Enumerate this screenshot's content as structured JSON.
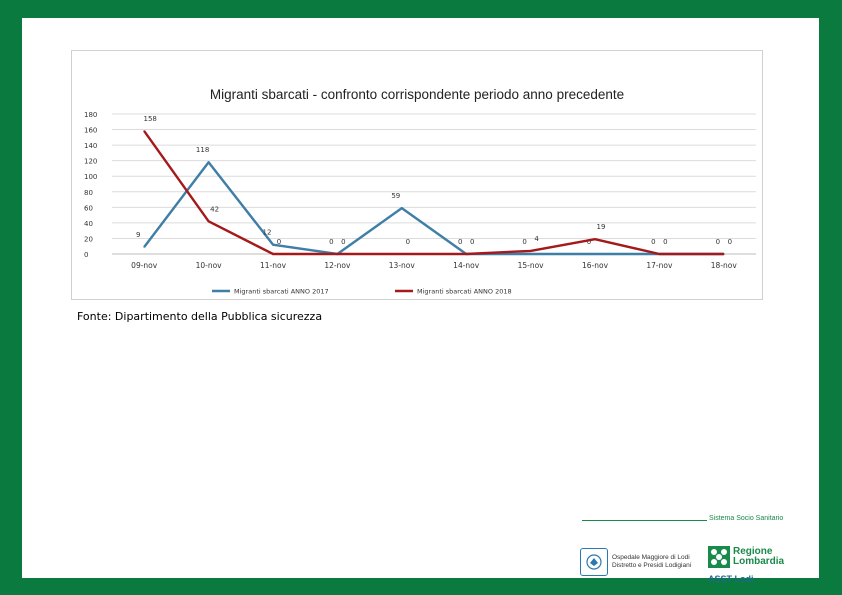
{
  "chart_data": {
    "type": "line",
    "title": "Migranti sbarcati - confronto corrispondente periodo anno precedente",
    "categories": [
      "09-nov",
      "10-nov",
      "11-nov",
      "12-nov",
      "13-nov",
      "14-nov",
      "15-nov",
      "16-nov",
      "17-nov",
      "18-nov"
    ],
    "ylim": [
      0,
      180
    ],
    "yticks": [
      0,
      20,
      40,
      60,
      80,
      100,
      120,
      140,
      160,
      180
    ],
    "grid": true,
    "legend_position": "bottom",
    "series": [
      {
        "name": "Migranti sbarcati ANNO 2017",
        "color": "#3f7ea6",
        "values": [
          9,
          118,
          12,
          0,
          59,
          0,
          0,
          0,
          0,
          0
        ],
        "labels": [
          "9",
          "118",
          "12",
          "0",
          "59",
          "0",
          "0",
          "0",
          "0",
          "0"
        ]
      },
      {
        "name": "Migranti sbarcati ANNO 2018",
        "color": "#a3191c",
        "values": [
          158,
          42,
          0,
          0,
          0,
          0,
          4,
          19,
          0,
          0
        ],
        "labels": [
          "158",
          "42",
          "0",
          "0",
          "0",
          "0",
          "4",
          "19",
          "0",
          "0"
        ]
      }
    ]
  },
  "source_note": "Fonte: Dipartimento della Pubblica sicurezza",
  "footer": {
    "sistema": "Sistema Socio Sanitario",
    "hospital_line1": "Ospedale Maggiore di Lodi",
    "hospital_line2": "Distretto e Presidi Lodigiani",
    "regione_line1": "Regione",
    "regione_line2": "Lombardia",
    "asst": "ASST Lodi"
  },
  "colors": {
    "frame": "#0a7a3f",
    "brand_green": "#1a8a4a"
  }
}
